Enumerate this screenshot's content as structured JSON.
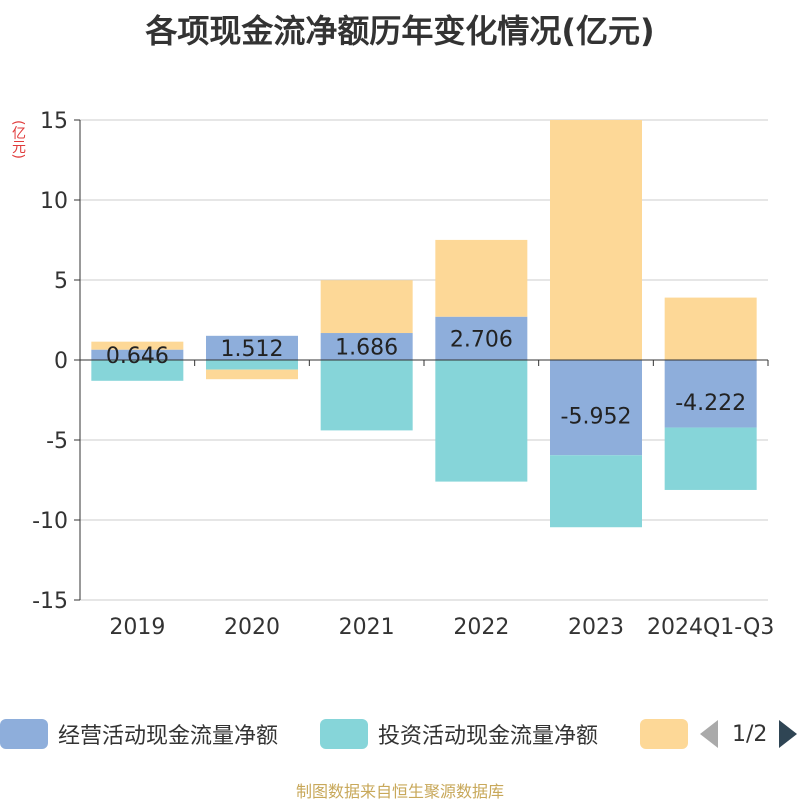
{
  "chart_data": {
    "type": "bar",
    "stacked": true,
    "title": "各项现金流净额历年变化情况(亿元)",
    "ylabel": "(亿元)",
    "categories": [
      "2019",
      "2020",
      "2021",
      "2022",
      "2023",
      "2024Q1-Q3"
    ],
    "ylim": [
      -15,
      15
    ],
    "yticks": [
      15,
      10,
      5,
      0,
      -5,
      -10,
      -15
    ],
    "grid": true,
    "series": [
      {
        "name": "经营活动现金流量净额",
        "color": "#8eaedb",
        "values": [
          0.646,
          1.512,
          1.686,
          2.706,
          -5.952,
          -4.222
        ],
        "labels": [
          "0.646",
          "1.512",
          "1.686",
          "2.706",
          "-5.952",
          "-4.222"
        ]
      },
      {
        "name": "投资活动现金流量净额",
        "color": "#86d5d9",
        "values": [
          -1.3,
          -0.6,
          -4.4,
          -7.6,
          -4.5,
          -3.9
        ]
      },
      {
        "name": "",
        "color": "#fdd897",
        "values": [
          0.5,
          -0.6,
          3.3,
          4.8,
          15.0,
          3.9
        ]
      }
    ]
  },
  "legend": {
    "items": [
      {
        "label": "经营活动现金流量净额",
        "color": "#8eaedb"
      },
      {
        "label": "投资活动现金流量净额",
        "color": "#86d5d9"
      },
      {
        "label": "",
        "color": "#fdd897"
      }
    ],
    "pager": "1/2"
  },
  "footer": {
    "source": "制图数据来自恒生聚源数据库"
  }
}
